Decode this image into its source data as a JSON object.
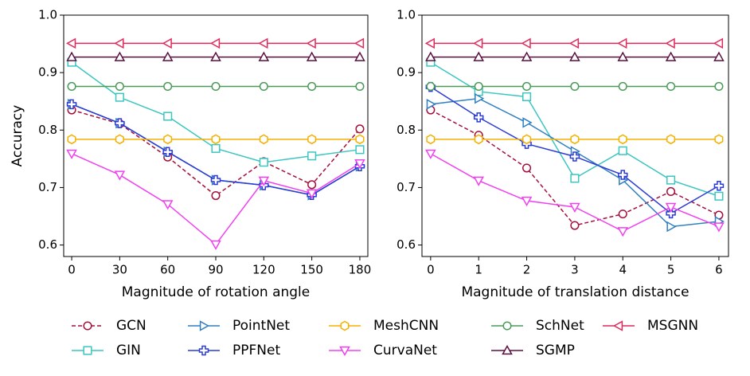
{
  "chart_data": [
    {
      "type": "line",
      "xlabel": "Magnitude of rotation angle",
      "ylabel": "Accuracy",
      "x": [
        0,
        30,
        60,
        90,
        120,
        150,
        180
      ],
      "xlim": [
        -5,
        185
      ],
      "xticks": [
        0,
        30,
        60,
        90,
        120,
        150,
        180
      ],
      "ylim": [
        0.58,
        1.0
      ],
      "yticks": [
        0.6,
        0.7,
        0.8,
        0.9,
        {
          "value": 1,
          "label": "1.0"
        }
      ],
      "series": [
        {
          "name": "GCN",
          "color": "#a50f3a",
          "marker": "circle",
          "linestyle": "dashed",
          "values": [
            0.835,
            0.811,
            0.753,
            0.686,
            0.745,
            0.705,
            0.802
          ]
        },
        {
          "name": "GIN",
          "color": "#3cc6c0",
          "marker": "square",
          "linestyle": "solid",
          "values": [
            0.918,
            0.857,
            0.824,
            0.768,
            0.744,
            0.755,
            0.766
          ]
        },
        {
          "name": "PointNet",
          "color": "#2f7fc1",
          "marker": "triangle-right",
          "linestyle": "solid",
          "values": [
            0.845,
            0.812,
            0.762,
            0.713,
            0.704,
            0.687,
            0.737
          ]
        },
        {
          "name": "PPFNet",
          "color": "#2a3bd6",
          "marker": "plus",
          "linestyle": "solid",
          "values": [
            0.845,
            0.812,
            0.762,
            0.713,
            0.704,
            0.687,
            0.737
          ]
        },
        {
          "name": "MeshCNN",
          "color": "#f5b100",
          "marker": "hexagon",
          "linestyle": "solid",
          "values": [
            0.784,
            0.784,
            0.784,
            0.784,
            0.784,
            0.784,
            0.784
          ]
        },
        {
          "name": "CurvaNet",
          "color": "#f040f0",
          "marker": "triangle-down",
          "linestyle": "solid",
          "values": [
            0.759,
            0.722,
            0.671,
            0.601,
            0.712,
            0.69,
            0.742
          ]
        },
        {
          "name": "SchNet",
          "color": "#4c9a5a",
          "marker": "circle",
          "linestyle": "solid",
          "values": [
            0.876,
            0.876,
            0.876,
            0.876,
            0.876,
            0.876,
            0.876
          ]
        },
        {
          "name": "SGMP",
          "color": "#5a1040",
          "marker": "triangle-up",
          "linestyle": "solid",
          "values": [
            0.927,
            0.927,
            0.927,
            0.927,
            0.927,
            0.927,
            0.927
          ]
        },
        {
          "name": "MSGNN",
          "color": "#e0285a",
          "marker": "triangle-left",
          "linestyle": "solid",
          "values": [
            0.951,
            0.951,
            0.951,
            0.951,
            0.951,
            0.951,
            0.951
          ]
        }
      ]
    },
    {
      "type": "line",
      "xlabel": "Magnitude of translation distance",
      "x": [
        0,
        1,
        2,
        3,
        4,
        5,
        6
      ],
      "xlim": [
        -0.18,
        6.2
      ],
      "xticks": [
        0,
        1,
        2,
        3,
        4,
        5,
        6
      ],
      "ylim": [
        0.58,
        1.0
      ],
      "yticks": [
        0.6,
        0.7,
        0.8,
        0.9,
        {
          "value": 1,
          "label": "1.0"
        }
      ],
      "series": [
        {
          "color": "#a50f3a",
          "marker": "circle",
          "linestyle": "dashed",
          "values": [
            0.835,
            0.791,
            0.734,
            0.634,
            0.654,
            0.693,
            0.652
          ]
        },
        {
          "color": "#3cc6c0",
          "marker": "square",
          "linestyle": "solid",
          "values": [
            0.918,
            0.867,
            0.858,
            0.716,
            0.764,
            0.713,
            0.685
          ]
        },
        {
          "color": "#2f7fc1",
          "marker": "triangle-right",
          "linestyle": "solid",
          "values": [
            0.845,
            0.855,
            0.813,
            0.763,
            0.713,
            0.632,
            0.641
          ]
        },
        {
          "color": "#2a3bd6",
          "marker": "plus",
          "linestyle": "solid",
          "values": [
            0.875,
            0.822,
            0.776,
            0.754,
            0.722,
            0.655,
            0.703
          ]
        },
        {
          "color": "#f5b100",
          "marker": "hexagon",
          "linestyle": "solid",
          "values": [
            0.784,
            0.784,
            0.784,
            0.784,
            0.784,
            0.784,
            0.784
          ]
        },
        {
          "color": "#f040f0",
          "marker": "triangle-down",
          "linestyle": "solid",
          "values": [
            0.759,
            0.712,
            0.677,
            0.666,
            0.624,
            0.666,
            0.632
          ]
        },
        {
          "color": "#4c9a5a",
          "marker": "circle",
          "linestyle": "solid",
          "values": [
            0.876,
            0.876,
            0.876,
            0.876,
            0.876,
            0.876,
            0.876
          ]
        },
        {
          "color": "#5a1040",
          "marker": "triangle-up",
          "linestyle": "solid",
          "values": [
            0.927,
            0.927,
            0.927,
            0.927,
            0.927,
            0.927,
            0.927
          ]
        },
        {
          "color": "#e0285a",
          "marker": "triangle-left",
          "linestyle": "solid",
          "values": [
            0.951,
            0.951,
            0.951,
            0.951,
            0.951,
            0.951,
            0.951
          ]
        }
      ]
    }
  ]
}
